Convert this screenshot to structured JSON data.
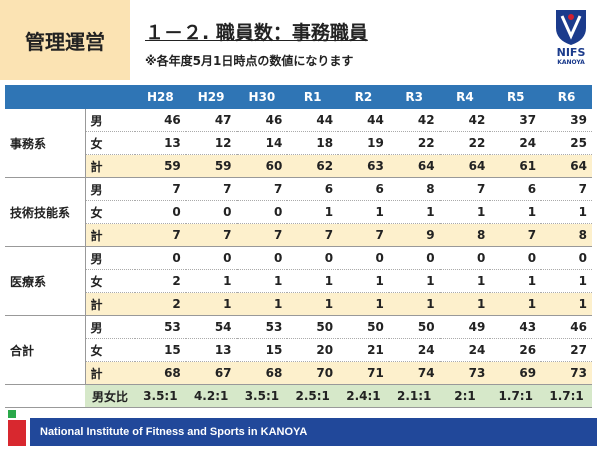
{
  "header": {
    "section": "管理運営",
    "title": "１－２. 職員数：事務職員",
    "note": "※各年度5月1日時点の数値になります"
  },
  "logo": {
    "name": "NIFS",
    "sub": "KANOYA"
  },
  "table": {
    "columns": [
      "H28",
      "H29",
      "H30",
      "R1",
      "R2",
      "R3",
      "R4",
      "R5",
      "R6"
    ],
    "groups": [
      {
        "name": "事務系",
        "rows": [
          {
            "label": "男",
            "values": [
              46,
              47,
              46,
              44,
              44,
              42,
              42,
              37,
              39
            ]
          },
          {
            "label": "女",
            "values": [
              13,
              12,
              14,
              18,
              19,
              22,
              22,
              24,
              25
            ]
          },
          {
            "label": "計",
            "values": [
              59,
              59,
              60,
              62,
              63,
              64,
              64,
              61,
              64
            ]
          }
        ]
      },
      {
        "name": "技術技能系",
        "rows": [
          {
            "label": "男",
            "values": [
              7,
              7,
              7,
              6,
              6,
              8,
              7,
              6,
              7
            ]
          },
          {
            "label": "女",
            "values": [
              0,
              0,
              0,
              1,
              1,
              1,
              1,
              1,
              1
            ]
          },
          {
            "label": "計",
            "values": [
              7,
              7,
              7,
              7,
              7,
              9,
              8,
              7,
              8
            ]
          }
        ]
      },
      {
        "name": "医療系",
        "rows": [
          {
            "label": "男",
            "values": [
              0,
              0,
              0,
              0,
              0,
              0,
              0,
              0,
              0
            ]
          },
          {
            "label": "女",
            "values": [
              2,
              1,
              1,
              1,
              1,
              1,
              1,
              1,
              1
            ]
          },
          {
            "label": "計",
            "values": [
              2,
              1,
              1,
              1,
              1,
              1,
              1,
              1,
              1
            ]
          }
        ]
      },
      {
        "name": "合計",
        "rows": [
          {
            "label": "男",
            "values": [
              53,
              54,
              53,
              50,
              50,
              50,
              49,
              43,
              46
            ]
          },
          {
            "label": "女",
            "values": [
              15,
              13,
              15,
              20,
              21,
              24,
              24,
              26,
              27
            ]
          },
          {
            "label": "計",
            "values": [
              68,
              67,
              68,
              70,
              71,
              74,
              73,
              69,
              73
            ]
          }
        ]
      }
    ],
    "ratio": {
      "label": "男女比",
      "values": [
        "3.5:1",
        "4.2:1",
        "3.5:1",
        "2.5:1",
        "2.4:1",
        "2.1:1",
        "2:1",
        "1.7:1",
        "1.7:1"
      ]
    }
  },
  "footer": {
    "text": "National Institute of Fitness and Sports in KANOYA"
  }
}
